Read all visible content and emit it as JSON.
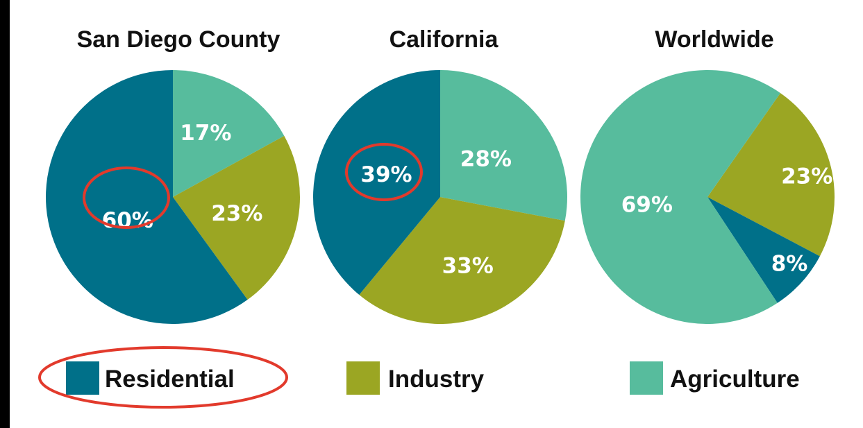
{
  "colors": {
    "background": "#ffffff",
    "frame_left": "#000000",
    "title_text": "#111111",
    "slice_label": "#ffffff",
    "highlight_ring": "#e23a2c"
  },
  "chart_data": [
    {
      "type": "pie",
      "title": "San Diego County",
      "slices": [
        {
          "category": "Agriculture",
          "value": 17,
          "label": "17%",
          "color": "#57bc9d",
          "highlighted": false
        },
        {
          "category": "Industry",
          "value": 23,
          "label": "23%",
          "color": "#9ba623",
          "highlighted": false
        },
        {
          "category": "Residential",
          "value": 60,
          "label": "60%",
          "color": "#007089",
          "highlighted": true
        }
      ]
    },
    {
      "type": "pie",
      "title": "California",
      "slices": [
        {
          "category": "Agriculture",
          "value": 28,
          "label": "28%",
          "color": "#57bc9d",
          "highlighted": false
        },
        {
          "category": "Industry",
          "value": 33,
          "label": "33%",
          "color": "#9ba623",
          "highlighted": false
        },
        {
          "category": "Residential",
          "value": 39,
          "label": "39%",
          "color": "#007089",
          "highlighted": true
        }
      ]
    },
    {
      "type": "pie",
      "title": "Worldwide",
      "slices": [
        {
          "category": "Industry",
          "value": 23,
          "label": "23%",
          "color": "#9ba623",
          "highlighted": false
        },
        {
          "category": "Residential",
          "value": 8,
          "label": "8%",
          "color": "#007089",
          "highlighted": false
        },
        {
          "category": "Agriculture",
          "value": 69,
          "label": "69%",
          "color": "#57bc9d",
          "highlighted": false
        }
      ]
    }
  ],
  "legend": {
    "placement": "bottom",
    "items": [
      {
        "label": "Residential",
        "color": "#007089",
        "highlighted": true
      },
      {
        "label": "Industry",
        "color": "#9ba623",
        "highlighted": false
      },
      {
        "label": "Agriculture",
        "color": "#57bc9d",
        "highlighted": false
      }
    ]
  }
}
